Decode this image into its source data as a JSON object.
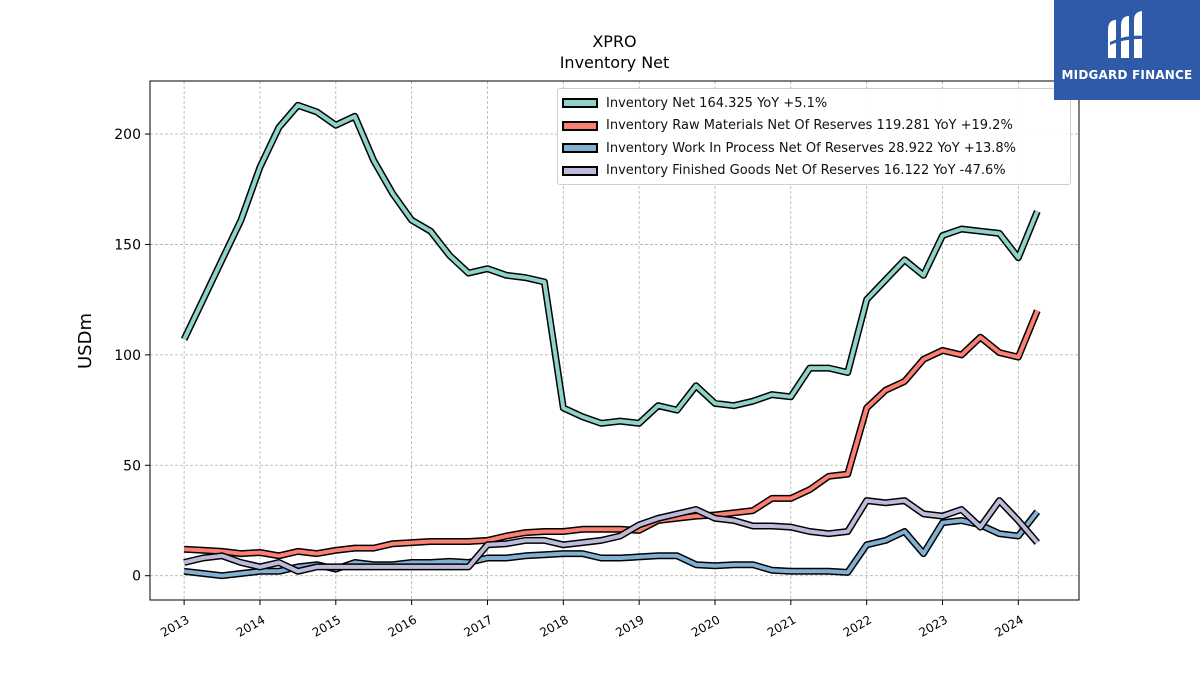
{
  "logo": {
    "text": "MIDGARD FINANCE",
    "mark": "MF-monogram"
  },
  "legend": {
    "items": [
      {
        "label": "Inventory Net  164.325 YoY +5.1%",
        "color": "#8dd3c7"
      },
      {
        "label": "Inventory Raw Materials Net Of Reserves  119.281 YoY +19.2%",
        "color": "#fb8072"
      },
      {
        "label": "Inventory Work In Process Net Of Reserves  28.922 YoY +13.8%",
        "color": "#80b1d3"
      },
      {
        "label": "Inventory Finished Goods Net Of Reserves  16.122 YoY -47.6%",
        "color": "#bebada"
      }
    ]
  },
  "chart_data": {
    "type": "line",
    "title": "XPRO",
    "subtitle": "Inventory Net",
    "xlabel": "",
    "ylabel": "USDm",
    "xlim": [
      2012.55,
      2024.8
    ],
    "ylim": [
      -11,
      224
    ],
    "grid": true,
    "legend_position": "top-right",
    "x_ticks": [
      2013,
      2014,
      2015,
      2016,
      2017,
      2018,
      2019,
      2020,
      2021,
      2022,
      2023,
      2024
    ],
    "x_tick_labels": [
      "2013",
      "2014",
      "2015",
      "2016",
      "2017",
      "2018",
      "2019",
      "2020",
      "2021",
      "2022",
      "2023",
      "2024"
    ],
    "y_ticks": [
      0,
      50,
      100,
      150,
      200
    ],
    "y_tick_labels": [
      "0",
      "50",
      "100",
      "150",
      "200"
    ],
    "x": [
      2013.0,
      2013.25,
      2013.5,
      2013.75,
      2014.0,
      2014.25,
      2014.5,
      2014.75,
      2015.0,
      2015.25,
      2015.5,
      2015.75,
      2016.0,
      2016.25,
      2016.5,
      2016.75,
      2017.0,
      2017.25,
      2017.5,
      2017.75,
      2018.0,
      2018.25,
      2018.5,
      2018.75,
      2019.0,
      2019.25,
      2019.5,
      2019.75,
      2020.0,
      2020.25,
      2020.5,
      2020.75,
      2021.0,
      2021.25,
      2021.5,
      2021.75,
      2022.0,
      2022.25,
      2022.5,
      2022.75,
      2023.0,
      2023.25,
      2023.5,
      2023.75,
      2024.0,
      2024.25
    ],
    "series": [
      {
        "name": "Inventory Net",
        "color": "#8dd3c7",
        "values": [
          107,
          125,
          143,
          161,
          185,
          203,
          213,
          210,
          204,
          208,
          188,
          173,
          161,
          156,
          145,
          137,
          139,
          136,
          135,
          133,
          76,
          72,
          69,
          70,
          69,
          77,
          75,
          86,
          78,
          77,
          79,
          82,
          81,
          94,
          94,
          92,
          125,
          134,
          143,
          136,
          154,
          157,
          156,
          155,
          144,
          165
        ]
      },
      {
        "name": "Inventory Raw Materials Net Of Reserves",
        "color": "#fb8072",
        "values": [
          12,
          11.5,
          11,
          10,
          10.5,
          9,
          11,
          10,
          11.5,
          12.5,
          12.5,
          14.5,
          15,
          15.5,
          15.5,
          15.5,
          16,
          18,
          19.5,
          20,
          20,
          21,
          21,
          21,
          20.5,
          25,
          26,
          27,
          27.5,
          28.5,
          29.5,
          35,
          35,
          39,
          45,
          46,
          76,
          84,
          88,
          98,
          102,
          100,
          108,
          101,
          99,
          120
        ]
      },
      {
        "name": "Inventory Work In Process Net Of Reserves",
        "color": "#80b1d3",
        "values": [
          2,
          1,
          0,
          1,
          2,
          2,
          4,
          5,
          3,
          6,
          5,
          5,
          6,
          6,
          6.5,
          6,
          8,
          8,
          9,
          9.5,
          10,
          10,
          8,
          8,
          8.5,
          9,
          9,
          5,
          4.5,
          5,
          5,
          2.5,
          2,
          2,
          2,
          1.5,
          14,
          16,
          20,
          10,
          24,
          25,
          23,
          19,
          18,
          29
        ]
      },
      {
        "name": "Inventory Finished Goods Net Of Reserves",
        "color": "#bebada",
        "values": [
          6,
          8,
          9,
          6,
          4,
          6,
          2,
          4,
          4,
          4,
          4,
          4,
          4,
          4,
          4,
          4,
          14,
          14.5,
          16,
          16,
          14,
          15,
          16,
          18,
          23,
          26,
          28,
          30,
          26,
          25,
          22.5,
          22.5,
          22,
          20,
          19,
          20,
          34,
          33,
          34,
          28,
          27,
          30,
          22,
          34,
          25,
          15
        ]
      }
    ]
  }
}
